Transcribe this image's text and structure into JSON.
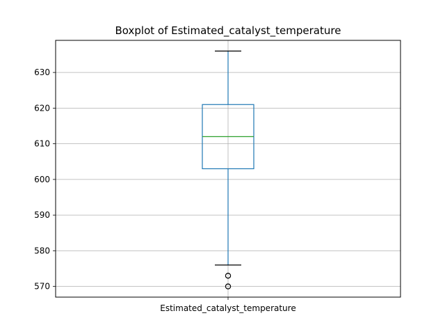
{
  "chart_data": {
    "type": "boxplot",
    "title": "Boxplot of Estimated_catalyst_temperature",
    "xlabel": "",
    "ylabel": "",
    "categories": [
      "Estimated_catalyst_temperature"
    ],
    "boxes": [
      {
        "name": "Estimated_catalyst_temperature",
        "whisker_low": 576,
        "q1": 603,
        "median": 612,
        "q3": 621,
        "whisker_high": 636,
        "outliers": [
          573,
          573,
          570,
          570
        ]
      }
    ],
    "ylim": [
      567,
      639
    ],
    "yticks": [
      570,
      580,
      590,
      600,
      610,
      620,
      630
    ],
    "grid": true,
    "colors": {
      "box": "#1f77b4",
      "median": "#2ca02c",
      "whisker": "#1f77b4",
      "cap": "#000000",
      "flier": "#000000",
      "grid": "#b0b0b0"
    }
  }
}
